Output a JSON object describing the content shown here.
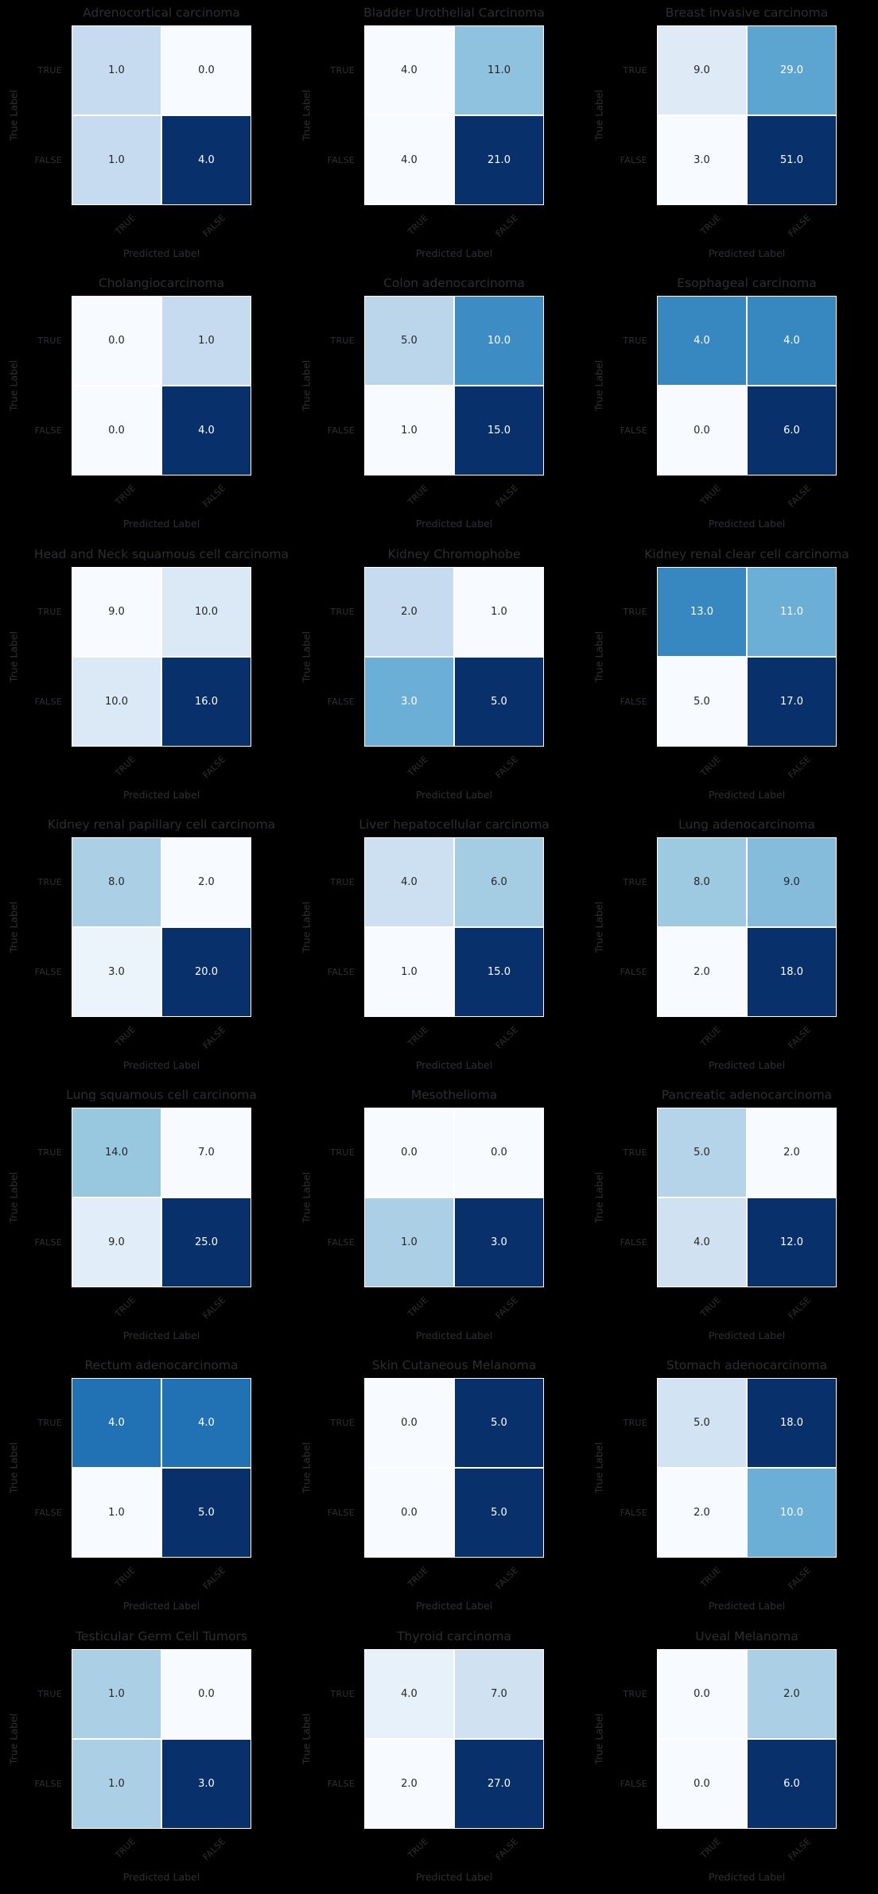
{
  "figure": {
    "background": "#000000",
    "title_color": "#2e2e32",
    "label_color": "#303034",
    "grid_line_color": "#ffffff",
    "annot_dark_text_color": "#262626",
    "annot_light_text_color": "#ffffff",
    "colormap_name": "Blues",
    "colormap": [
      "#f7fbff",
      "#deebf7",
      "#c6dbef",
      "#9ecae1",
      "#6baed6",
      "#4292c6",
      "#2171b5",
      "#08519c",
      "#08306b"
    ],
    "xlabel": "Predicted Label",
    "ylabel": "True Label",
    "tick_labels": [
      "TRUE",
      "FALSE"
    ],
    "grid": {
      "rows": 7,
      "cols": 3
    }
  },
  "chart_data": [
    {
      "type": "heatmap",
      "title": "Adrenocortical carcinoma",
      "x_categories": [
        "TRUE",
        "FALSE"
      ],
      "y_categories": [
        "TRUE",
        "FALSE"
      ],
      "values": [
        [
          1.0,
          0.0
        ],
        [
          1.0,
          4.0
        ]
      ],
      "xlabel": "Predicted Label",
      "ylabel": "True Label"
    },
    {
      "type": "heatmap",
      "title": "Bladder Urothelial Carcinoma",
      "x_categories": [
        "TRUE",
        "FALSE"
      ],
      "y_categories": [
        "TRUE",
        "FALSE"
      ],
      "values": [
        [
          4.0,
          11.0
        ],
        [
          4.0,
          21.0
        ]
      ],
      "xlabel": "Predicted Label",
      "ylabel": "True Label"
    },
    {
      "type": "heatmap",
      "title": "Breast invasive carcinoma",
      "x_categories": [
        "TRUE",
        "FALSE"
      ],
      "y_categories": [
        "TRUE",
        "FALSE"
      ],
      "values": [
        [
          9.0,
          29.0
        ],
        [
          3.0,
          51.0
        ]
      ],
      "xlabel": "Predicted Label",
      "ylabel": "True Label"
    },
    {
      "type": "heatmap",
      "title": "Cholangiocarcinoma",
      "x_categories": [
        "TRUE",
        "FALSE"
      ],
      "y_categories": [
        "TRUE",
        "FALSE"
      ],
      "values": [
        [
          0.0,
          1.0
        ],
        [
          0.0,
          4.0
        ]
      ],
      "xlabel": "Predicted Label",
      "ylabel": "True Label"
    },
    {
      "type": "heatmap",
      "title": "Colon adenocarcinoma",
      "x_categories": [
        "TRUE",
        "FALSE"
      ],
      "y_categories": [
        "TRUE",
        "FALSE"
      ],
      "values": [
        [
          5.0,
          10.0
        ],
        [
          1.0,
          15.0
        ]
      ],
      "xlabel": "Predicted Label",
      "ylabel": "True Label"
    },
    {
      "type": "heatmap",
      "title": "Esophageal carcinoma",
      "x_categories": [
        "TRUE",
        "FALSE"
      ],
      "y_categories": [
        "TRUE",
        "FALSE"
      ],
      "values": [
        [
          4.0,
          4.0
        ],
        [
          0.0,
          6.0
        ]
      ],
      "xlabel": "Predicted Label",
      "ylabel": "True Label"
    },
    {
      "type": "heatmap",
      "title": "Head and Neck squamous cell carcinoma",
      "x_categories": [
        "TRUE",
        "FALSE"
      ],
      "y_categories": [
        "TRUE",
        "FALSE"
      ],
      "values": [
        [
          9.0,
          10.0
        ],
        [
          10.0,
          16.0
        ]
      ],
      "xlabel": "Predicted Label",
      "ylabel": "True Label"
    },
    {
      "type": "heatmap",
      "title": "Kidney Chromophobe",
      "x_categories": [
        "TRUE",
        "FALSE"
      ],
      "y_categories": [
        "TRUE",
        "FALSE"
      ],
      "values": [
        [
          2.0,
          1.0
        ],
        [
          3.0,
          5.0
        ]
      ],
      "xlabel": "Predicted Label",
      "ylabel": "True Label"
    },
    {
      "type": "heatmap",
      "title": "Kidney renal clear cell carcinoma",
      "x_categories": [
        "TRUE",
        "FALSE"
      ],
      "y_categories": [
        "TRUE",
        "FALSE"
      ],
      "values": [
        [
          13.0,
          11.0
        ],
        [
          5.0,
          17.0
        ]
      ],
      "xlabel": "Predicted Label",
      "ylabel": "True Label"
    },
    {
      "type": "heatmap",
      "title": "Kidney renal papillary cell carcinoma",
      "x_categories": [
        "TRUE",
        "FALSE"
      ],
      "y_categories": [
        "TRUE",
        "FALSE"
      ],
      "values": [
        [
          8.0,
          2.0
        ],
        [
          3.0,
          20.0
        ]
      ],
      "xlabel": "Predicted Label",
      "ylabel": "True Label"
    },
    {
      "type": "heatmap",
      "title": "Liver hepatocellular carcinoma",
      "x_categories": [
        "TRUE",
        "FALSE"
      ],
      "y_categories": [
        "TRUE",
        "FALSE"
      ],
      "values": [
        [
          4.0,
          6.0
        ],
        [
          1.0,
          15.0
        ]
      ],
      "xlabel": "Predicted Label",
      "ylabel": "True Label"
    },
    {
      "type": "heatmap",
      "title": "Lung adenocarcinoma",
      "x_categories": [
        "TRUE",
        "FALSE"
      ],
      "y_categories": [
        "TRUE",
        "FALSE"
      ],
      "values": [
        [
          8.0,
          9.0
        ],
        [
          2.0,
          18.0
        ]
      ],
      "xlabel": "Predicted Label",
      "ylabel": "True Label"
    },
    {
      "type": "heatmap",
      "title": "Lung squamous cell carcinoma",
      "x_categories": [
        "TRUE",
        "FALSE"
      ],
      "y_categories": [
        "TRUE",
        "FALSE"
      ],
      "values": [
        [
          14.0,
          7.0
        ],
        [
          9.0,
          25.0
        ]
      ],
      "xlabel": "Predicted Label",
      "ylabel": "True Label"
    },
    {
      "type": "heatmap",
      "title": "Mesothelioma",
      "x_categories": [
        "TRUE",
        "FALSE"
      ],
      "y_categories": [
        "TRUE",
        "FALSE"
      ],
      "values": [
        [
          0.0,
          0.0
        ],
        [
          1.0,
          3.0
        ]
      ],
      "xlabel": "Predicted Label",
      "ylabel": "True Label"
    },
    {
      "type": "heatmap",
      "title": "Pancreatic adenocarcinoma",
      "x_categories": [
        "TRUE",
        "FALSE"
      ],
      "y_categories": [
        "TRUE",
        "FALSE"
      ],
      "values": [
        [
          5.0,
          2.0
        ],
        [
          4.0,
          12.0
        ]
      ],
      "xlabel": "Predicted Label",
      "ylabel": "True Label"
    },
    {
      "type": "heatmap",
      "title": "Rectum adenocarcinoma",
      "x_categories": [
        "TRUE",
        "FALSE"
      ],
      "y_categories": [
        "TRUE",
        "FALSE"
      ],
      "values": [
        [
          4.0,
          4.0
        ],
        [
          1.0,
          5.0
        ]
      ],
      "xlabel": "Predicted Label",
      "ylabel": "True Label"
    },
    {
      "type": "heatmap",
      "title": "Skin Cutaneous Melanoma",
      "x_categories": [
        "TRUE",
        "FALSE"
      ],
      "y_categories": [
        "TRUE",
        "FALSE"
      ],
      "values": [
        [
          0.0,
          5.0
        ],
        [
          0.0,
          5.0
        ]
      ],
      "xlabel": "Predicted Label",
      "ylabel": "True Label"
    },
    {
      "type": "heatmap",
      "title": "Stomach adenocarcinoma",
      "x_categories": [
        "TRUE",
        "FALSE"
      ],
      "y_categories": [
        "TRUE",
        "FALSE"
      ],
      "values": [
        [
          5.0,
          18.0
        ],
        [
          2.0,
          10.0
        ]
      ],
      "xlabel": "Predicted Label",
      "ylabel": "True Label"
    },
    {
      "type": "heatmap",
      "title": "Testicular Germ Cell Tumors",
      "x_categories": [
        "TRUE",
        "FALSE"
      ],
      "y_categories": [
        "TRUE",
        "FALSE"
      ],
      "values": [
        [
          1.0,
          0.0
        ],
        [
          1.0,
          3.0
        ]
      ],
      "xlabel": "Predicted Label",
      "ylabel": "True Label"
    },
    {
      "type": "heatmap",
      "title": "Thyroid carcinoma",
      "x_categories": [
        "TRUE",
        "FALSE"
      ],
      "y_categories": [
        "TRUE",
        "FALSE"
      ],
      "values": [
        [
          4.0,
          7.0
        ],
        [
          2.0,
          27.0
        ]
      ],
      "xlabel": "Predicted Label",
      "ylabel": "True Label"
    },
    {
      "type": "heatmap",
      "title": "Uveal Melanoma",
      "x_categories": [
        "TRUE",
        "FALSE"
      ],
      "y_categories": [
        "TRUE",
        "FALSE"
      ],
      "values": [
        [
          0.0,
          2.0
        ],
        [
          0.0,
          6.0
        ]
      ],
      "xlabel": "Predicted Label",
      "ylabel": "True Label"
    }
  ]
}
